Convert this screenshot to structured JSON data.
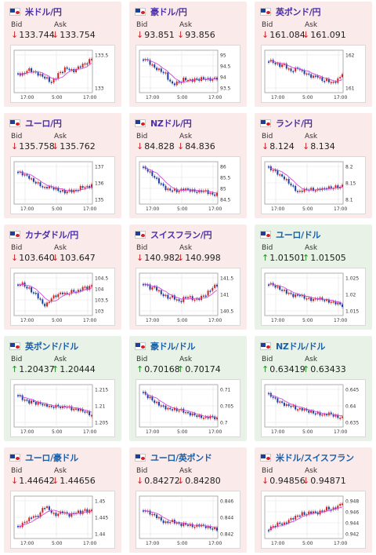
{
  "labels": {
    "bid": "Bid",
    "ask": "Ask"
  },
  "colors": {
    "down_bg": "#fbeaea",
    "up_bg": "#e8f2e7",
    "arrow_down": "#d42020",
    "arrow_up": "#228b22",
    "candle_up": "#d42020",
    "candle_down": "#1b3fa0",
    "ma_line": "#d14bd6",
    "ma_line2": "#3a8bff"
  },
  "tiles": [
    {
      "pair": "米ドル/円",
      "bid": "133.744",
      "ask": "133.754",
      "dir": "down",
      "flag": "flag-us-icon",
      "x_ticks": [
        "17:00",
        "5:00",
        "17:00"
      ],
      "y_ticks": [
        "133.5",
        "133"
      ]
    },
    {
      "pair": "豪ドル/円",
      "bid": "93.851",
      "ask": "93.856",
      "dir": "down",
      "flag": "flag-au-icon",
      "x_ticks": [
        "17:00",
        "5:00",
        "17:00"
      ],
      "y_ticks": [
        "95",
        "94.5",
        "94",
        "93.5"
      ]
    },
    {
      "pair": "英ポンド/円",
      "bid": "161.084",
      "ask": "161.091",
      "dir": "down",
      "flag": "flag-uk-icon",
      "x_ticks": [
        "17:00",
        "5:00",
        "17:00"
      ],
      "y_ticks": [
        "162",
        "161"
      ]
    },
    {
      "pair": "ユーロ/円",
      "bid": "135.758",
      "ask": "135.762",
      "dir": "down",
      "flag": "flag-eu-icon",
      "x_ticks": [
        "17:00",
        "5:00",
        "17:00"
      ],
      "y_ticks": [
        "137",
        "136",
        "135"
      ]
    },
    {
      "pair": "NZドル/円",
      "bid": "84.828",
      "ask": "84.836",
      "dir": "down",
      "flag": "flag-nz-icon",
      "x_ticks": [
        "17:00",
        "5:00",
        "17:00"
      ],
      "y_ticks": [
        "86",
        "85.5",
        "85",
        "84.5"
      ]
    },
    {
      "pair": "ランド/円",
      "bid": "8.124",
      "ask": "8.134",
      "dir": "down",
      "flag": "flag-za-icon",
      "x_ticks": [
        "17:00",
        "5:00",
        "17:00"
      ],
      "y_ticks": [
        "8.2",
        "8.15",
        "8.1"
      ]
    },
    {
      "pair": "カナダドル/円",
      "bid": "103.640",
      "ask": "103.647",
      "dir": "down",
      "flag": "flag-ca-icon",
      "x_ticks": [
        "17:00",
        "5:00",
        "17:00"
      ],
      "y_ticks": [
        "104.5",
        "104",
        "103.5",
        "103"
      ]
    },
    {
      "pair": "スイスフラン/円",
      "bid": "140.982",
      "ask": "140.998",
      "dir": "down",
      "flag": "flag-ch-icon",
      "x_ticks": [
        "17:00",
        "5:00",
        "17:00"
      ],
      "y_ticks": [
        "141.5",
        "141",
        "140.5"
      ]
    },
    {
      "pair": "ユーロ/ドル",
      "bid": "1.01501",
      "ask": "1.01505",
      "dir": "up",
      "flag": "flag-eu-us-icon",
      "x_ticks": [
        "17:00",
        "5:00",
        "17:00"
      ],
      "y_ticks": [
        "1.025",
        "1.02",
        "1.015"
      ]
    },
    {
      "pair": "英ポンド/ドル",
      "bid": "1.20437",
      "ask": "1.20444",
      "dir": "up",
      "flag": "flag-uk-us-icon",
      "x_ticks": [
        "17:00",
        "5:00",
        "17:00"
      ],
      "y_ticks": [
        "1.215",
        "1.21",
        "1.205"
      ]
    },
    {
      "pair": "豪ドル/ドル",
      "bid": "0.70168",
      "ask": "0.70174",
      "dir": "up",
      "flag": "flag-au-us-icon",
      "x_ticks": [
        "17:00",
        "5:00",
        "17:00"
      ],
      "y_ticks": [
        "0.71",
        "0.705",
        "0.7"
      ]
    },
    {
      "pair": "NZドル/ドル",
      "bid": "0.63419",
      "ask": "0.63433",
      "dir": "up",
      "flag": "flag-nz-us-icon",
      "x_ticks": [
        "17:00",
        "5:00",
        "17:00"
      ],
      "y_ticks": [
        "0.645",
        "0.64",
        "0.635"
      ]
    },
    {
      "pair": "ユーロ/豪ドル",
      "bid": "1.44642",
      "ask": "1.44656",
      "dir": "down",
      "flag": "flag-eu-au-icon",
      "x_ticks": [
        "17:00",
        "5:00",
        "17:00"
      ],
      "y_ticks": [
        "1.45",
        "1.445",
        "1.44"
      ]
    },
    {
      "pair": "ユーロ/英ポンド",
      "bid": "0.84272",
      "ask": "0.84280",
      "dir": "down",
      "flag": "flag-eu-uk-icon",
      "x_ticks": [
        "17:00",
        "5:00",
        "17:00"
      ],
      "y_ticks": [
        "0.846",
        "0.844",
        "0.842"
      ]
    },
    {
      "pair": "米ドル/スイスフラン",
      "bid": "0.94856",
      "ask": "0.94871",
      "dir": "down",
      "flag": "flag-us-ch-icon",
      "x_ticks": [
        "17:00",
        "5:00",
        "17:00"
      ],
      "y_ticks": [
        "0.948",
        "0.946",
        "0.944",
        "0.942"
      ]
    }
  ]
}
